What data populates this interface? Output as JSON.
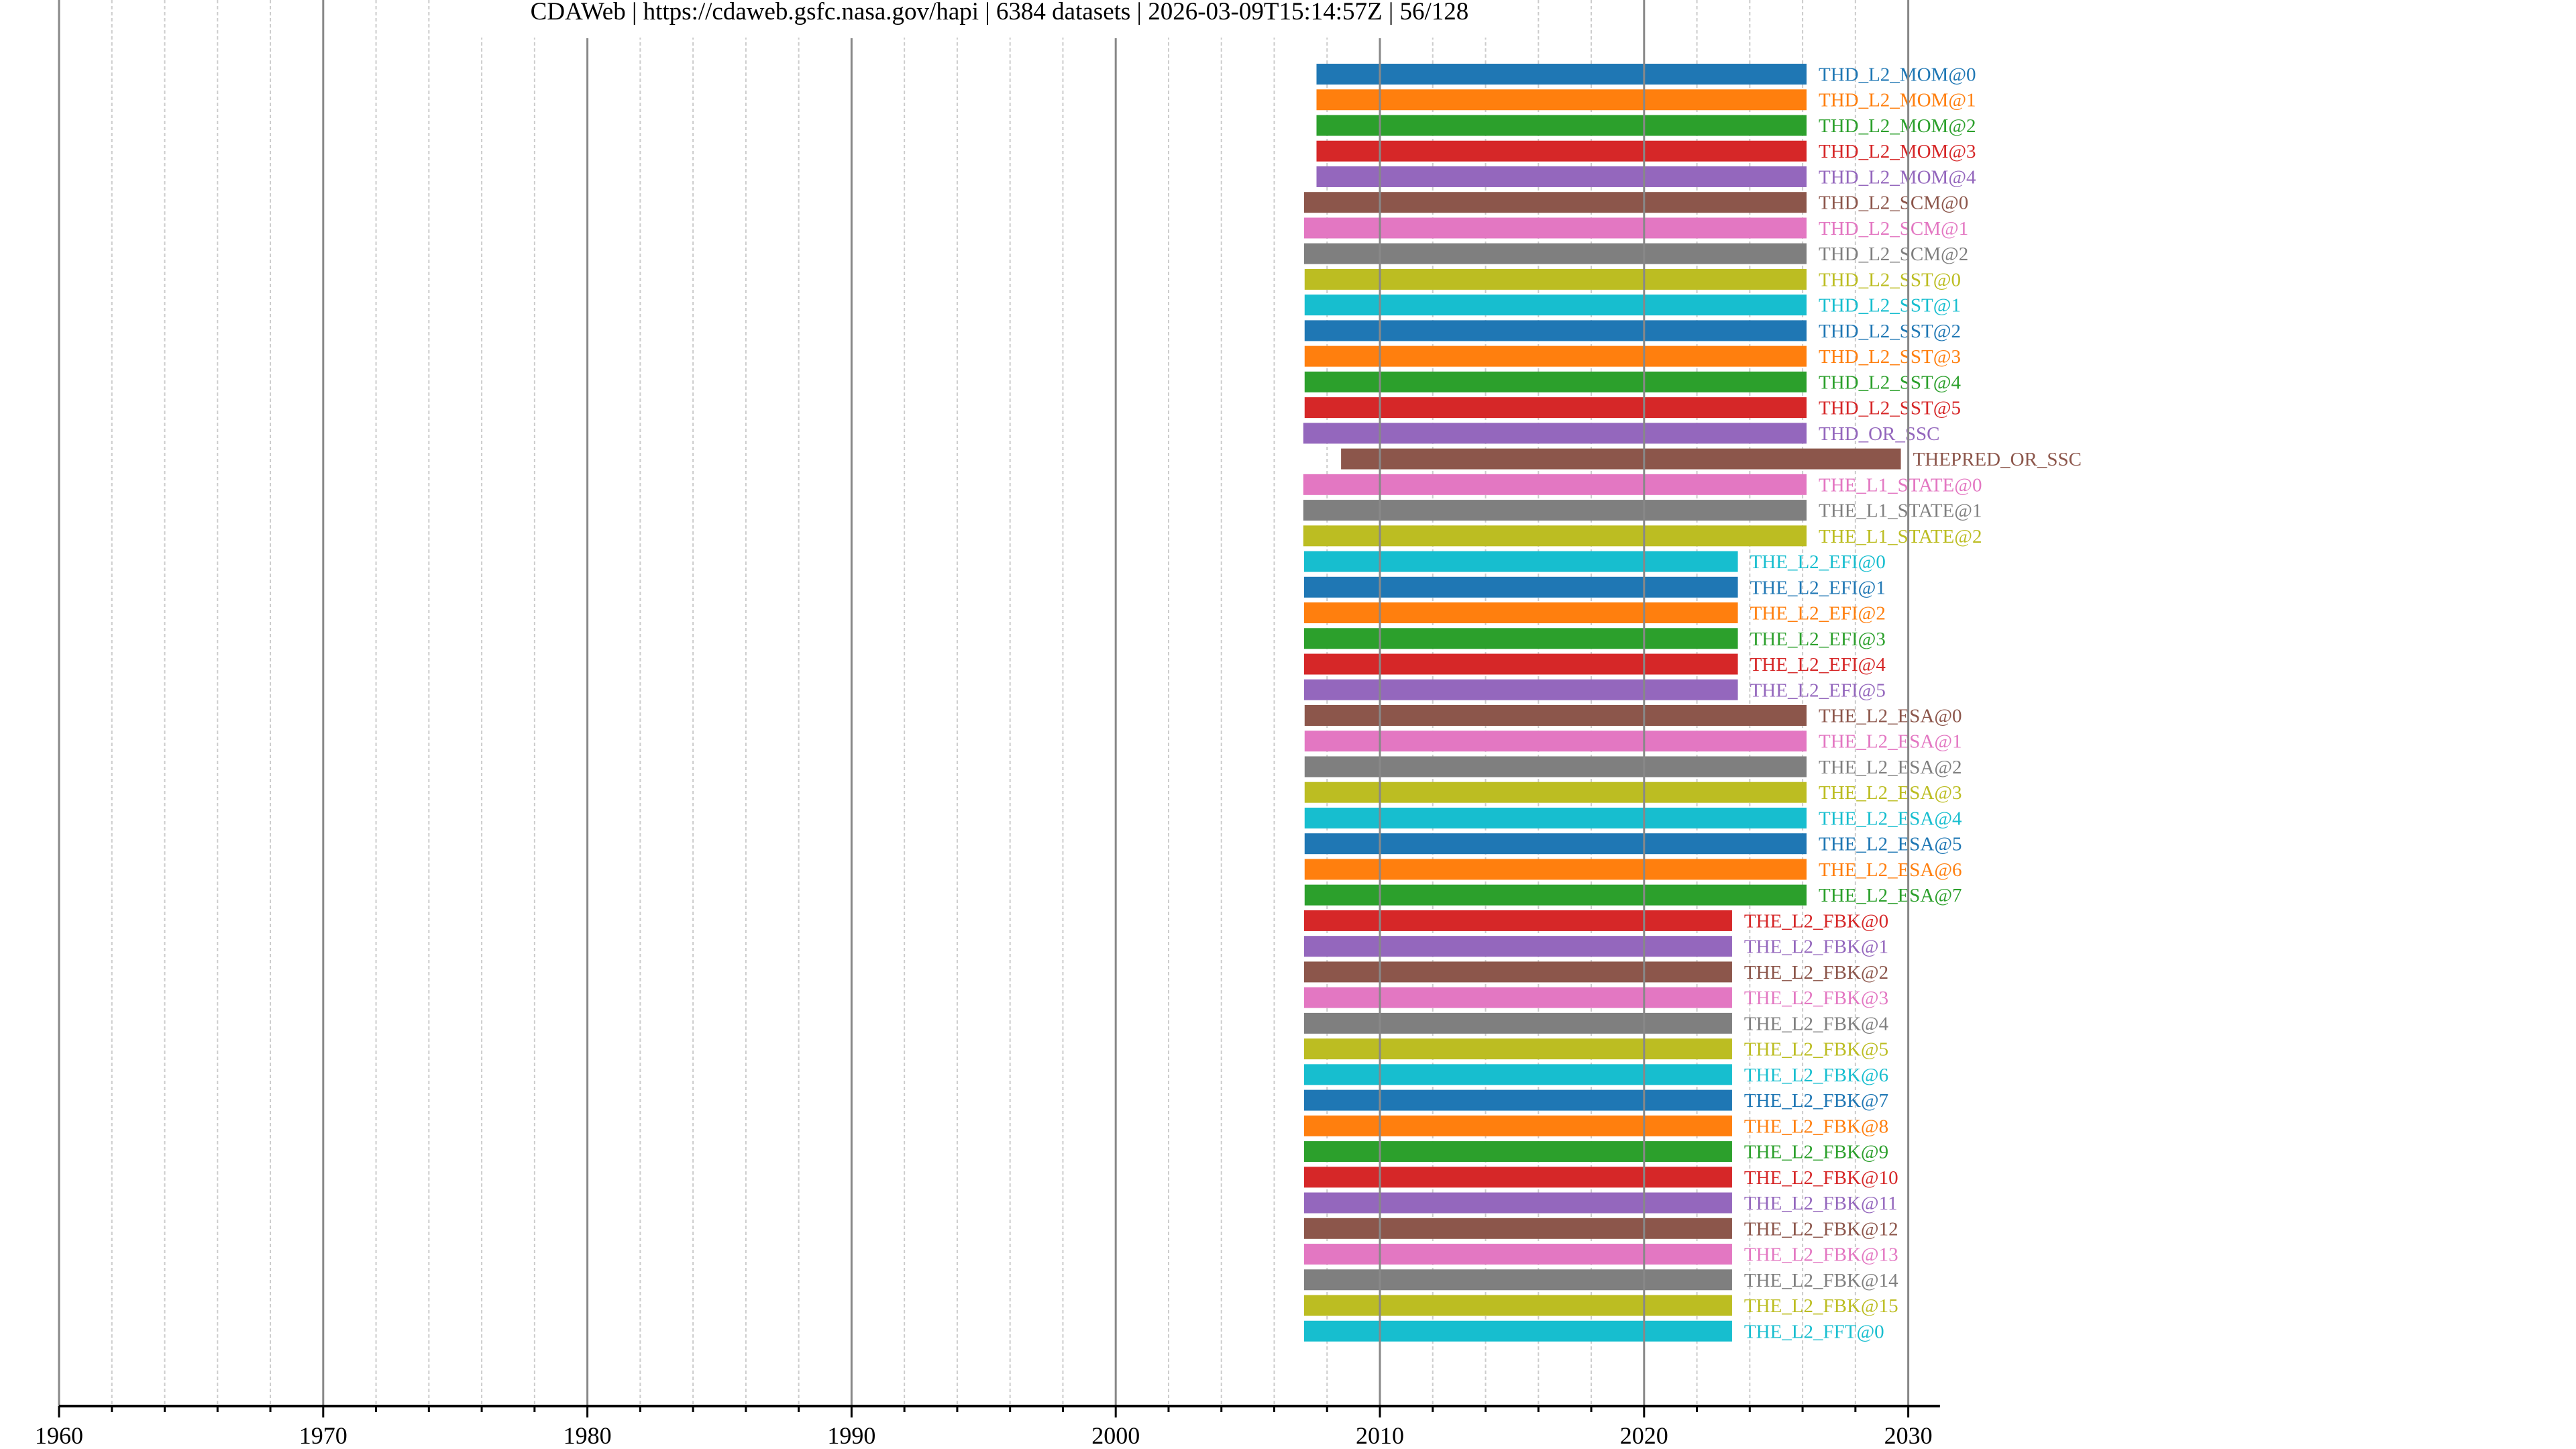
{
  "chart_data": {
    "type": "timeline",
    "title": "CDAWeb | https://cdaweb.gsfc.nasa.gov/hapi | 6384 datasets | 2026-03-09T15:14:57Z | 56/128",
    "xlabel": "",
    "ylabel": "",
    "xlim": [
      1960,
      2031.2
    ],
    "x_ticks": [
      1960,
      1970,
      1980,
      1990,
      2000,
      2010,
      2020,
      2030
    ],
    "x_tick_labels": [
      "1960",
      "1970",
      "1980",
      "1990",
      "2000",
      "2010",
      "2020",
      "2030"
    ],
    "minor_tick_step_years": 2,
    "grid": true,
    "palette": [
      "#1f77b4",
      "#ff7f0e",
      "#2ca02c",
      "#d62728",
      "#9467bd",
      "#8c564b",
      "#e377c2",
      "#7f7f7f",
      "#bcbd22",
      "#17becf"
    ],
    "series": [
      {
        "name": "THD_L2_MOM@0",
        "start": 2007.6,
        "end": 2026.15
      },
      {
        "name": "THD_L2_MOM@1",
        "start": 2007.6,
        "end": 2026.15
      },
      {
        "name": "THD_L2_MOM@2",
        "start": 2007.6,
        "end": 2026.15
      },
      {
        "name": "THD_L2_MOM@3",
        "start": 2007.6,
        "end": 2026.15
      },
      {
        "name": "THD_L2_MOM@4",
        "start": 2007.6,
        "end": 2026.15
      },
      {
        "name": "THD_L2_SCM@0",
        "start": 2007.13,
        "end": 2026.15
      },
      {
        "name": "THD_L2_SCM@1",
        "start": 2007.13,
        "end": 2026.15
      },
      {
        "name": "THD_L2_SCM@2",
        "start": 2007.13,
        "end": 2026.15
      },
      {
        "name": "THD_L2_SST@0",
        "start": 2007.15,
        "end": 2026.15
      },
      {
        "name": "THD_L2_SST@1",
        "start": 2007.15,
        "end": 2026.15
      },
      {
        "name": "THD_L2_SST@2",
        "start": 2007.15,
        "end": 2026.15
      },
      {
        "name": "THD_L2_SST@3",
        "start": 2007.15,
        "end": 2026.15
      },
      {
        "name": "THD_L2_SST@4",
        "start": 2007.15,
        "end": 2026.15
      },
      {
        "name": "THD_L2_SST@5",
        "start": 2007.15,
        "end": 2026.15
      },
      {
        "name": "THD_OR_SSC",
        "start": 2007.1,
        "end": 2026.15
      },
      {
        "name": "THEPRED_OR_SSC",
        "start": 2008.53,
        "end": 2029.72
      },
      {
        "name": "THE_L1_STATE@0",
        "start": 2007.1,
        "end": 2026.15
      },
      {
        "name": "THE_L1_STATE@1",
        "start": 2007.1,
        "end": 2026.15
      },
      {
        "name": "THE_L1_STATE@2",
        "start": 2007.1,
        "end": 2026.15
      },
      {
        "name": "THE_L2_EFI@0",
        "start": 2007.13,
        "end": 2023.55
      },
      {
        "name": "THE_L2_EFI@1",
        "start": 2007.13,
        "end": 2023.55
      },
      {
        "name": "THE_L2_EFI@2",
        "start": 2007.13,
        "end": 2023.55
      },
      {
        "name": "THE_L2_EFI@3",
        "start": 2007.13,
        "end": 2023.55
      },
      {
        "name": "THE_L2_EFI@4",
        "start": 2007.13,
        "end": 2023.55
      },
      {
        "name": "THE_L2_EFI@5",
        "start": 2007.13,
        "end": 2023.55
      },
      {
        "name": "THE_L2_ESA@0",
        "start": 2007.15,
        "end": 2026.15
      },
      {
        "name": "THE_L2_ESA@1",
        "start": 2007.15,
        "end": 2026.15
      },
      {
        "name": "THE_L2_ESA@2",
        "start": 2007.15,
        "end": 2026.15
      },
      {
        "name": "THE_L2_ESA@3",
        "start": 2007.15,
        "end": 2026.15
      },
      {
        "name": "THE_L2_ESA@4",
        "start": 2007.15,
        "end": 2026.15
      },
      {
        "name": "THE_L2_ESA@5",
        "start": 2007.15,
        "end": 2026.15
      },
      {
        "name": "THE_L2_ESA@6",
        "start": 2007.15,
        "end": 2026.15
      },
      {
        "name": "THE_L2_ESA@7",
        "start": 2007.15,
        "end": 2026.15
      },
      {
        "name": "THE_L2_FBK@0",
        "start": 2007.13,
        "end": 2023.33
      },
      {
        "name": "THE_L2_FBK@1",
        "start": 2007.13,
        "end": 2023.33
      },
      {
        "name": "THE_L2_FBK@2",
        "start": 2007.13,
        "end": 2023.33
      },
      {
        "name": "THE_L2_FBK@3",
        "start": 2007.13,
        "end": 2023.33
      },
      {
        "name": "THE_L2_FBK@4",
        "start": 2007.13,
        "end": 2023.33
      },
      {
        "name": "THE_L2_FBK@5",
        "start": 2007.13,
        "end": 2023.33
      },
      {
        "name": "THE_L2_FBK@6",
        "start": 2007.13,
        "end": 2023.33
      },
      {
        "name": "THE_L2_FBK@7",
        "start": 2007.13,
        "end": 2023.33
      },
      {
        "name": "THE_L2_FBK@8",
        "start": 2007.13,
        "end": 2023.33
      },
      {
        "name": "THE_L2_FBK@9",
        "start": 2007.13,
        "end": 2023.33
      },
      {
        "name": "THE_L2_FBK@10",
        "start": 2007.13,
        "end": 2023.33
      },
      {
        "name": "THE_L2_FBK@11",
        "start": 2007.13,
        "end": 2023.33
      },
      {
        "name": "THE_L2_FBK@12",
        "start": 2007.13,
        "end": 2023.33
      },
      {
        "name": "THE_L2_FBK@13",
        "start": 2007.13,
        "end": 2023.33
      },
      {
        "name": "THE_L2_FBK@14",
        "start": 2007.13,
        "end": 2023.33
      },
      {
        "name": "THE_L2_FBK@15",
        "start": 2007.13,
        "end": 2023.33
      },
      {
        "name": "THE_L2_FFT@0",
        "start": 2007.13,
        "end": 2023.33
      }
    ]
  }
}
